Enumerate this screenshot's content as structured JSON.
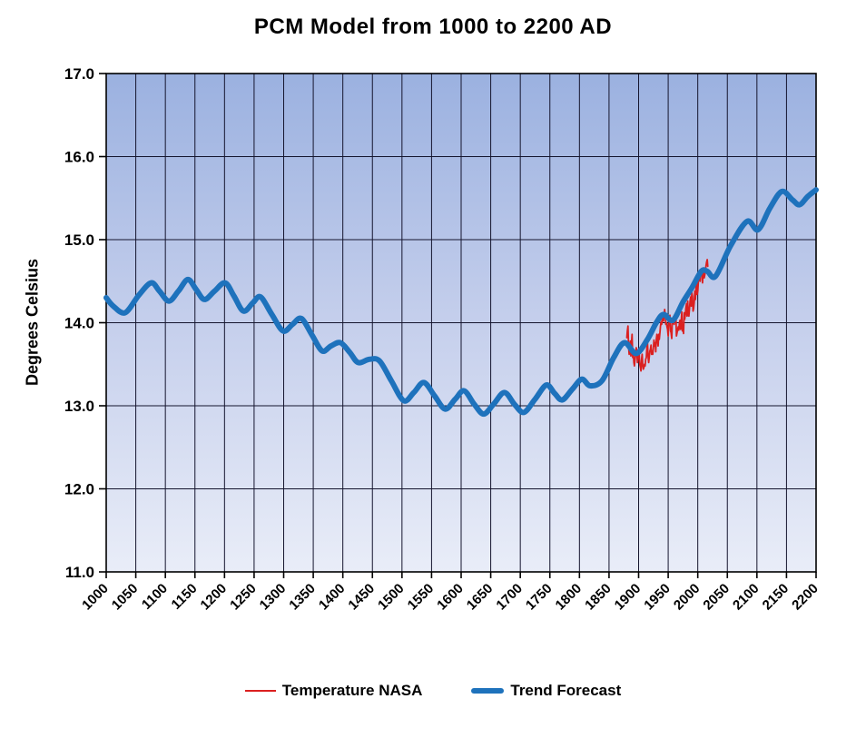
{
  "chart_data": {
    "type": "line",
    "title": "PCM Model from 1000 to 2200 AD",
    "xlabel": "",
    "ylabel": "Degrees Celsius",
    "xlim": [
      1000,
      2200
    ],
    "ylim": [
      11.0,
      17.0
    ],
    "x_ticks": [
      1000,
      1050,
      1100,
      1150,
      1200,
      1250,
      1300,
      1350,
      1400,
      1450,
      1500,
      1550,
      1600,
      1650,
      1700,
      1750,
      1800,
      1850,
      1900,
      1950,
      2000,
      2050,
      2100,
      2150,
      2200
    ],
    "y_ticks": [
      11.0,
      12.0,
      13.0,
      14.0,
      15.0,
      16.0,
      17.0
    ],
    "grid": "both",
    "gridline_color": "#15152e",
    "axis_color": "#000000",
    "plot_bg_gradient": [
      "#9bb1e0",
      "#c5cfec",
      "#e9edf8"
    ],
    "legend_position": "bottom-center",
    "series": [
      {
        "name": "Temperature NASA",
        "color": "#db2020",
        "stroke_width": 1.8,
        "style": "jagged",
        "points": [
          [
            1880,
            13.82
          ],
          [
            1881,
            13.9
          ],
          [
            1882,
            13.96
          ],
          [
            1883,
            13.72
          ],
          [
            1884,
            13.62
          ],
          [
            1885,
            13.7
          ],
          [
            1886,
            13.78
          ],
          [
            1887,
            13.6
          ],
          [
            1888,
            13.76
          ],
          [
            1889,
            13.86
          ],
          [
            1890,
            13.58
          ],
          [
            1891,
            13.66
          ],
          [
            1892,
            13.52
          ],
          [
            1893,
            13.48
          ],
          [
            1894,
            13.56
          ],
          [
            1895,
            13.62
          ],
          [
            1896,
            13.7
          ],
          [
            1897,
            13.66
          ],
          [
            1898,
            13.52
          ],
          [
            1899,
            13.58
          ],
          [
            1900,
            13.68
          ],
          [
            1901,
            13.62
          ],
          [
            1902,
            13.5
          ],
          [
            1903,
            13.46
          ],
          [
            1904,
            13.42
          ],
          [
            1905,
            13.56
          ],
          [
            1906,
            13.62
          ],
          [
            1907,
            13.48
          ],
          [
            1908,
            13.44
          ],
          [
            1909,
            13.46
          ],
          [
            1910,
            13.5
          ],
          [
            1911,
            13.48
          ],
          [
            1912,
            13.56
          ],
          [
            1913,
            13.58
          ],
          [
            1914,
            13.7
          ],
          [
            1915,
            13.76
          ],
          [
            1916,
            13.6
          ],
          [
            1917,
            13.52
          ],
          [
            1918,
            13.58
          ],
          [
            1919,
            13.66
          ],
          [
            1920,
            13.68
          ],
          [
            1921,
            13.73
          ],
          [
            1922,
            13.62
          ],
          [
            1923,
            13.66
          ],
          [
            1924,
            13.62
          ],
          [
            1925,
            13.7
          ],
          [
            1926,
            13.79
          ],
          [
            1927,
            13.72
          ],
          [
            1928,
            13.76
          ],
          [
            1929,
            13.65
          ],
          [
            1930,
            13.8
          ],
          [
            1931,
            13.86
          ],
          [
            1932,
            13.78
          ],
          [
            1933,
            13.72
          ],
          [
            1934,
            13.86
          ],
          [
            1935,
            13.8
          ],
          [
            1936,
            13.88
          ],
          [
            1937,
            13.96
          ],
          [
            1938,
            14.01
          ],
          [
            1939,
            13.98
          ],
          [
            1940,
            14.05
          ],
          [
            1941,
            14.11
          ],
          [
            1942,
            14.02
          ],
          [
            1943,
            14.08
          ],
          [
            1944,
            14.16
          ],
          [
            1945,
            14.1
          ],
          [
            1946,
            13.98
          ],
          [
            1947,
            14.0
          ],
          [
            1948,
            13.95
          ],
          [
            1949,
            13.92
          ],
          [
            1950,
            13.84
          ],
          [
            1951,
            13.98
          ],
          [
            1952,
            14.02
          ],
          [
            1953,
            14.09
          ],
          [
            1954,
            13.9
          ],
          [
            1955,
            13.88
          ],
          [
            1956,
            13.81
          ],
          [
            1957,
            14.02
          ],
          [
            1958,
            14.06
          ],
          [
            1959,
            14.0
          ],
          [
            1960,
            13.98
          ],
          [
            1961,
            14.05
          ],
          [
            1962,
            14.02
          ],
          [
            1963,
            14.06
          ],
          [
            1964,
            13.84
          ],
          [
            1965,
            13.88
          ],
          [
            1966,
            13.92
          ],
          [
            1967,
            13.95
          ],
          [
            1968,
            13.91
          ],
          [
            1969,
            14.0
          ],
          [
            1970,
            14.03
          ],
          [
            1971,
            13.92
          ],
          [
            1972,
            14.01
          ],
          [
            1973,
            14.13
          ],
          [
            1974,
            13.9
          ],
          [
            1975,
            13.95
          ],
          [
            1976,
            13.87
          ],
          [
            1977,
            14.12
          ],
          [
            1978,
            14.04
          ],
          [
            1979,
            14.1
          ],
          [
            1980,
            14.18
          ],
          [
            1981,
            14.23
          ],
          [
            1982,
            14.08
          ],
          [
            1983,
            14.26
          ],
          [
            1984,
            14.1
          ],
          [
            1985,
            14.08
          ],
          [
            1986,
            14.16
          ],
          [
            1987,
            14.26
          ],
          [
            1988,
            14.31
          ],
          [
            1989,
            14.2
          ],
          [
            1990,
            14.36
          ],
          [
            1991,
            14.32
          ],
          [
            1992,
            14.14
          ],
          [
            1993,
            14.17
          ],
          [
            1994,
            14.25
          ],
          [
            1995,
            14.38
          ],
          [
            1996,
            14.28
          ],
          [
            1997,
            14.42
          ],
          [
            1998,
            14.56
          ],
          [
            1999,
            14.34
          ],
          [
            2000,
            14.38
          ],
          [
            2001,
            14.49
          ],
          [
            2002,
            14.56
          ],
          [
            2003,
            14.55
          ],
          [
            2004,
            14.5
          ],
          [
            2005,
            14.63
          ],
          [
            2006,
            14.58
          ],
          [
            2007,
            14.61
          ],
          [
            2008,
            14.48
          ],
          [
            2009,
            14.58
          ],
          [
            2010,
            14.66
          ],
          [
            2011,
            14.54
          ],
          [
            2012,
            14.58
          ],
          [
            2013,
            14.63
          ],
          [
            2014,
            14.69
          ],
          [
            2015,
            14.73
          ],
          [
            2016,
            14.76
          ],
          [
            2017,
            14.68
          ]
        ]
      },
      {
        "name": "Trend Forecast",
        "color": "#1e72bc",
        "stroke_width": 6,
        "style": "smooth",
        "points": [
          [
            1000,
            14.3
          ],
          [
            1012,
            14.2
          ],
          [
            1032,
            14.12
          ],
          [
            1055,
            14.33
          ],
          [
            1076,
            14.48
          ],
          [
            1090,
            14.38
          ],
          [
            1106,
            14.26
          ],
          [
            1122,
            14.38
          ],
          [
            1138,
            14.52
          ],
          [
            1152,
            14.4
          ],
          [
            1166,
            14.28
          ],
          [
            1183,
            14.38
          ],
          [
            1201,
            14.48
          ],
          [
            1216,
            14.32
          ],
          [
            1232,
            14.14
          ],
          [
            1248,
            14.24
          ],
          [
            1261,
            14.31
          ],
          [
            1280,
            14.1
          ],
          [
            1299,
            13.9
          ],
          [
            1315,
            13.98
          ],
          [
            1330,
            14.05
          ],
          [
            1348,
            13.85
          ],
          [
            1365,
            13.66
          ],
          [
            1380,
            13.72
          ],
          [
            1396,
            13.76
          ],
          [
            1412,
            13.64
          ],
          [
            1426,
            13.52
          ],
          [
            1445,
            13.56
          ],
          [
            1462,
            13.54
          ],
          [
            1482,
            13.3
          ],
          [
            1503,
            13.06
          ],
          [
            1520,
            13.16
          ],
          [
            1537,
            13.28
          ],
          [
            1555,
            13.12
          ],
          [
            1573,
            12.96
          ],
          [
            1590,
            13.08
          ],
          [
            1605,
            13.18
          ],
          [
            1622,
            13.02
          ],
          [
            1638,
            12.9
          ],
          [
            1655,
            13.02
          ],
          [
            1673,
            13.16
          ],
          [
            1690,
            13.02
          ],
          [
            1706,
            12.92
          ],
          [
            1725,
            13.08
          ],
          [
            1744,
            13.25
          ],
          [
            1758,
            13.15
          ],
          [
            1771,
            13.07
          ],
          [
            1788,
            13.2
          ],
          [
            1804,
            13.32
          ],
          [
            1818,
            13.24
          ],
          [
            1838,
            13.3
          ],
          [
            1858,
            13.58
          ],
          [
            1876,
            13.76
          ],
          [
            1896,
            13.63
          ],
          [
            1915,
            13.8
          ],
          [
            1930,
            14.0
          ],
          [
            1942,
            14.1
          ],
          [
            1958,
            14.03
          ],
          [
            1975,
            14.25
          ],
          [
            1990,
            14.42
          ],
          [
            2006,
            14.62
          ],
          [
            2016,
            14.62
          ],
          [
            2030,
            14.56
          ],
          [
            2055,
            14.92
          ],
          [
            2083,
            15.22
          ],
          [
            2102,
            15.12
          ],
          [
            2122,
            15.38
          ],
          [
            2142,
            15.58
          ],
          [
            2160,
            15.48
          ],
          [
            2172,
            15.42
          ],
          [
            2186,
            15.52
          ],
          [
            2200,
            15.6
          ]
        ]
      }
    ]
  }
}
